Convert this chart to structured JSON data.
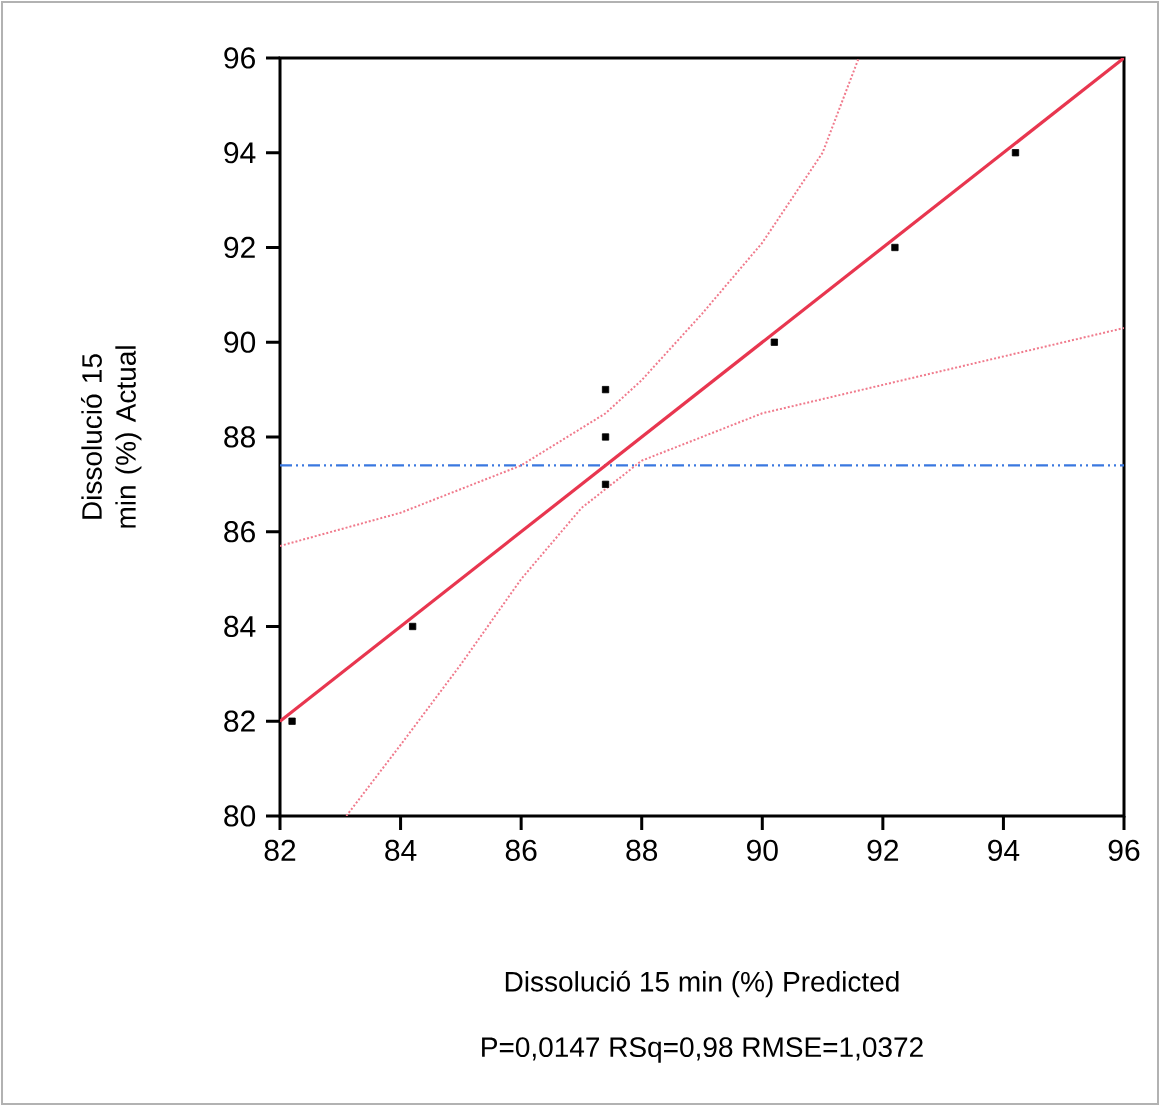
{
  "chart_data": {
    "type": "scatter",
    "xlabel": "Dissolució 15 min (%) Predicted",
    "ylabel": "Dissolució 15 min (%) Actual",
    "annotations": [
      "P=0,0147 RSq=0,98 RMSE=1,0372"
    ],
    "series": [
      {
        "color": "#000000",
        "marker": "square",
        "x": [
          82.2,
          84.2,
          87.4,
          87.4,
          87.4,
          90.2,
          92.2,
          94.2
        ],
        "values": [
          82,
          84,
          89,
          88,
          87,
          90,
          92,
          94
        ]
      },
      {
        "type": "line",
        "color": "#e8364f",
        "line_style": "solid",
        "x": [
          82,
          96
        ],
        "values": [
          82,
          96
        ]
      },
      {
        "type": "line",
        "color": "#f07a8c",
        "line_style": "dotted",
        "x": [
          82,
          84,
          86,
          87.4,
          88,
          89,
          90,
          91,
          91.6
        ],
        "values": [
          85.7,
          86.4,
          87.4,
          88.5,
          89.2,
          90.6,
          92.1,
          94.0,
          96
        ]
      },
      {
        "type": "line",
        "color": "#f07a8c",
        "line_style": "dotted",
        "x": [
          83.1,
          84,
          85,
          86,
          87,
          87.4,
          88,
          89,
          90,
          92,
          94,
          96
        ],
        "values": [
          80,
          81.5,
          83.2,
          85.0,
          86.5,
          86.9,
          87.5,
          88.0,
          88.5,
          89.1,
          89.7,
          90.3
        ]
      }
    ],
    "ref_lines": [
      {
        "axis": "y",
        "value": 87.4,
        "color": "#3a78e0",
        "line_style": "dashed"
      }
    ],
    "xlim": [
      82,
      96
    ],
    "ylim": [
      80,
      96
    ],
    "xticks": [
      82,
      84,
      86,
      88,
      90,
      92,
      94,
      96
    ],
    "yticks": [
      80,
      82,
      84,
      86,
      88,
      90,
      92,
      94,
      96
    ],
    "grid": false
  }
}
